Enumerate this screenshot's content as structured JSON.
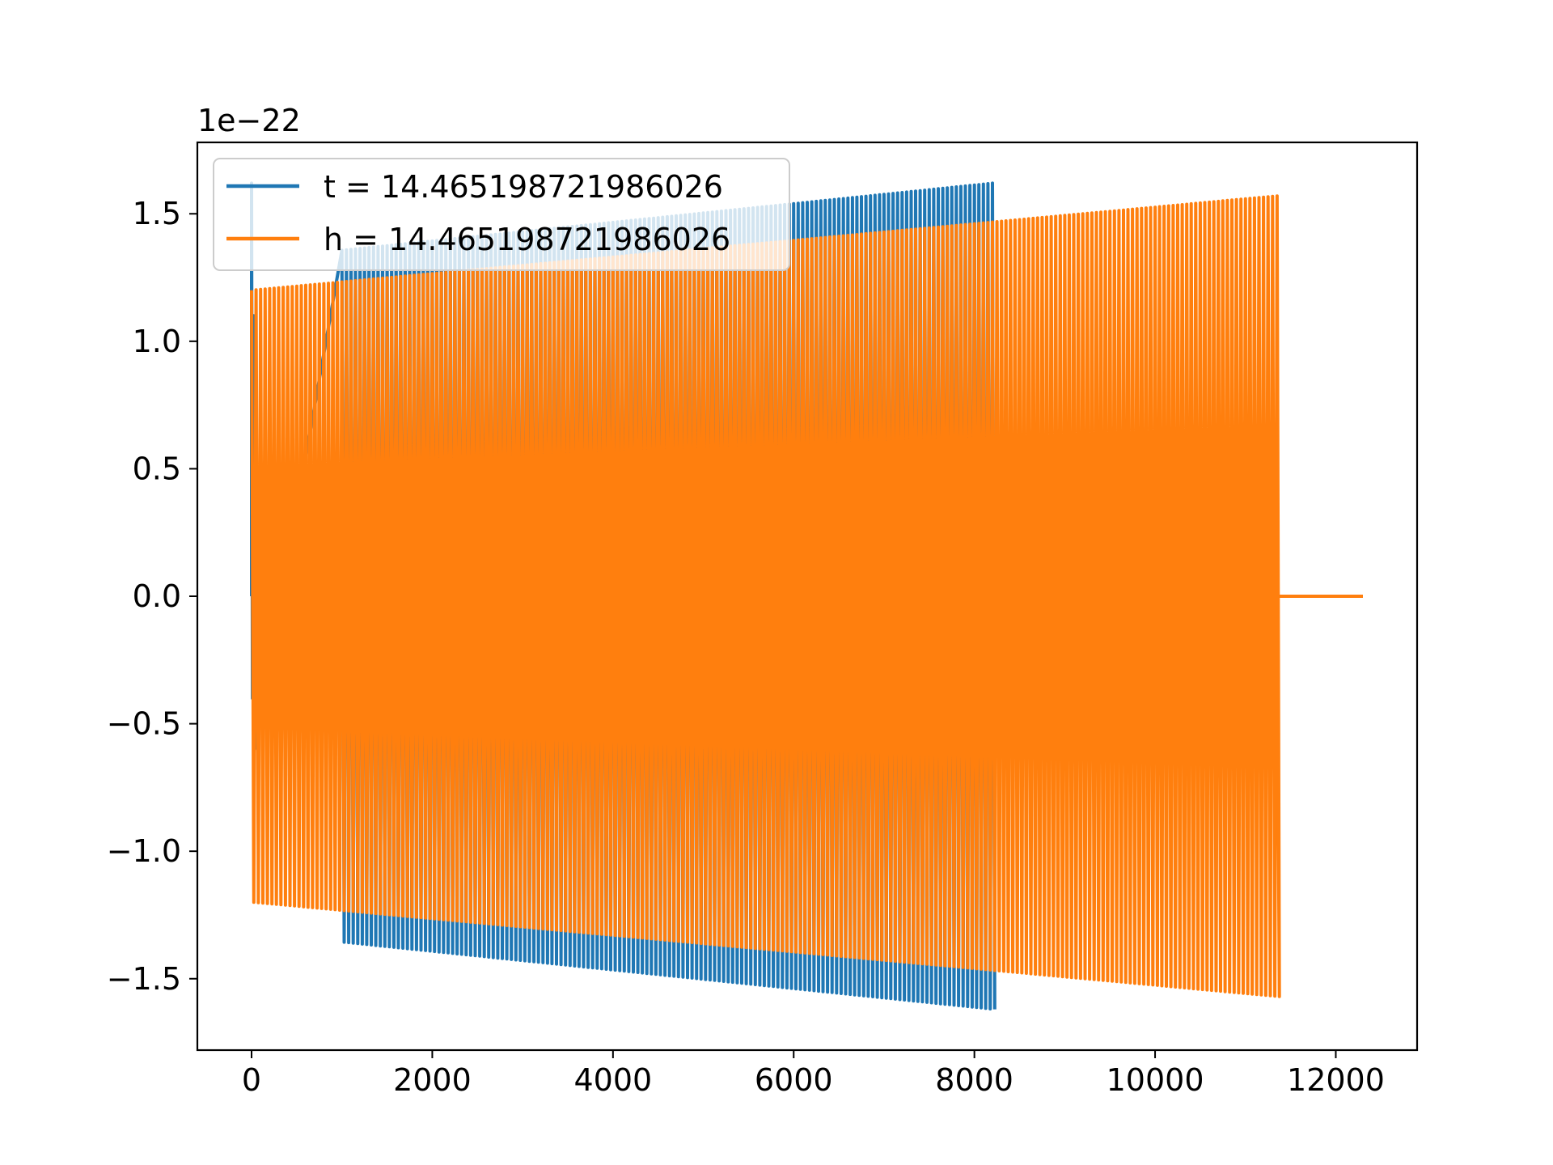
{
  "chart_data": {
    "type": "line",
    "title": "",
    "xlabel": "",
    "ylabel": "",
    "offset_label": "1e−22",
    "xlim": [
      -600,
      12900
    ],
    "ylim": [
      -1.78,
      1.78
    ],
    "x_ticks": [
      0,
      2000,
      4000,
      6000,
      8000,
      10000,
      12000
    ],
    "x_tick_labels": [
      "0",
      "2000",
      "4000",
      "6000",
      "8000",
      "10000",
      "12000"
    ],
    "y_ticks": [
      -1.5,
      -1.0,
      -0.5,
      0.0,
      0.5,
      1.0,
      1.5
    ],
    "y_tick_labels": [
      "−1.5",
      "−1.0",
      "−0.5",
      "0.0",
      "0.5",
      "1.0",
      "1.5"
    ],
    "grid": false,
    "legend_position": "upper-left",
    "series": [
      {
        "name": "t = 14.465198721986026",
        "color": "#1f77b4",
        "style": "oscillation",
        "x_start": 0,
        "x_end": 8200,
        "amplitude_start": 1.32,
        "amplitude_end": 1.62,
        "period": 50,
        "initial_spike": 1.62,
        "gap_until": 1000
      },
      {
        "name": "h = 14.465198721986026",
        "color": "#ff7f0e",
        "style": "oscillation",
        "x_start": 0,
        "x_end": 11350,
        "amplitude_start": 1.2,
        "amplitude_end": 1.57,
        "period": 50,
        "tail_to": 12300,
        "tail_value": 0.0
      }
    ]
  }
}
